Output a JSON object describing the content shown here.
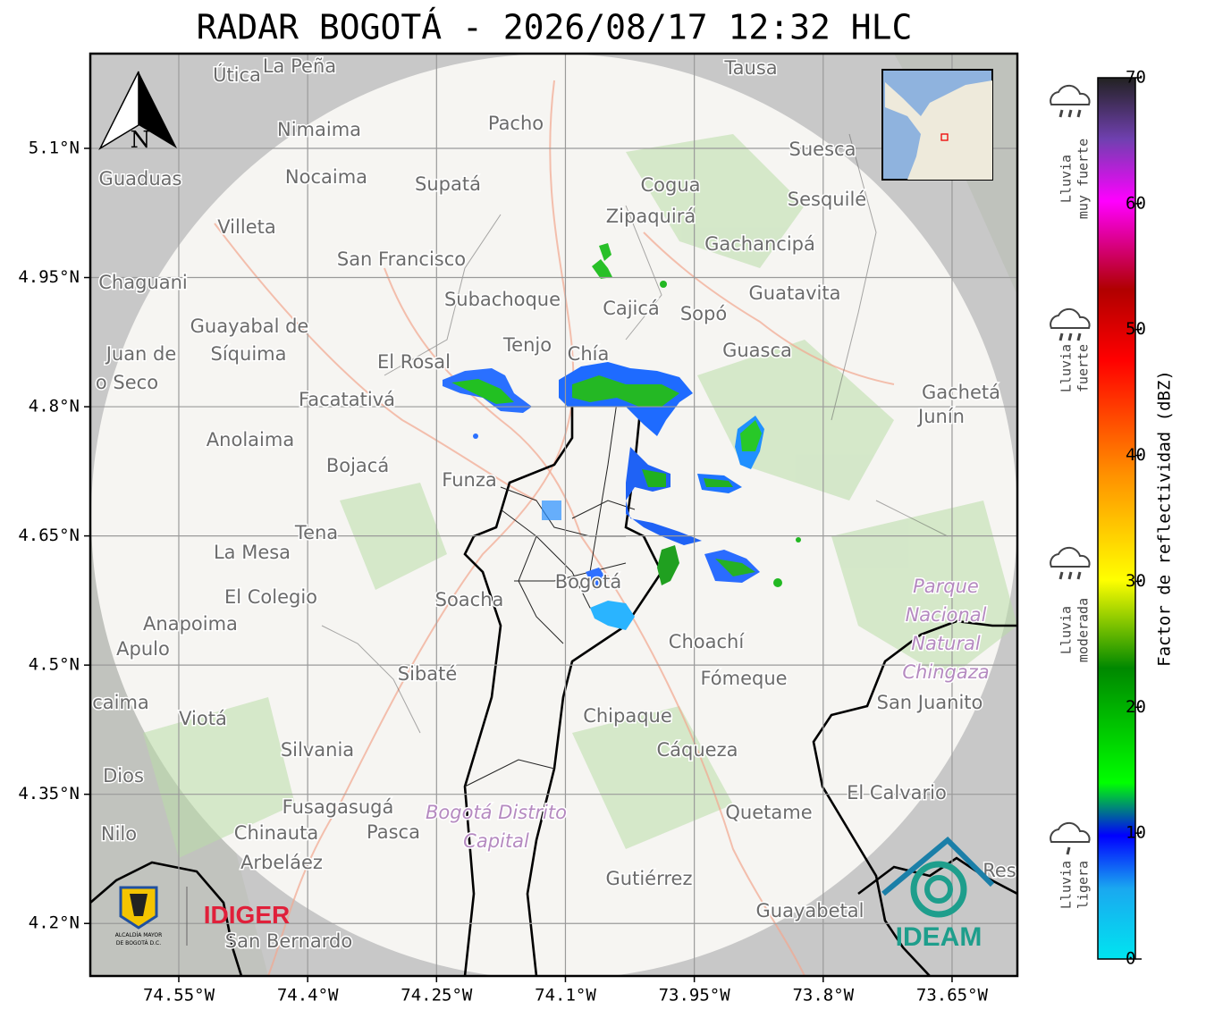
{
  "title": "RADAR BOGOTÁ - 2026/08/17 12:32 HLC",
  "map": {
    "xlim": [
      -74.653,
      -73.574
    ],
    "ylim": [
      4.139,
      5.21
    ],
    "xticks": [
      {
        "value": -74.55,
        "label": "74.55°W"
      },
      {
        "value": -74.4,
        "label": "74.4°W"
      },
      {
        "value": -74.25,
        "label": "74.25°W"
      },
      {
        "value": -74.1,
        "label": "74.1°W"
      },
      {
        "value": -73.95,
        "label": "73.95°W"
      },
      {
        "value": -73.8,
        "label": "73.8°W"
      },
      {
        "value": -73.65,
        "label": "73.65°W"
      }
    ],
    "yticks": [
      {
        "value": 5.1,
        "label": "5.1°N"
      },
      {
        "value": 4.95,
        "label": "4.95°N"
      },
      {
        "value": 4.8,
        "label": "4.8°N"
      },
      {
        "value": 4.65,
        "label": "4.65°N"
      },
      {
        "value": 4.5,
        "label": "4.5°N"
      },
      {
        "value": 4.35,
        "label": "4.35°N"
      },
      {
        "value": 4.2,
        "label": "4.2°N"
      }
    ],
    "north": "N",
    "places": [
      "Útica",
      "La Peña",
      "Tausa",
      "Nimaima",
      "Pacho",
      "Suesca",
      "Guaduas",
      "Nocaima",
      "Supatá",
      "Cogua",
      "Sesquilé",
      "Zipaquirá",
      "Villeta",
      "Gachancipá",
      "San Francisco",
      "Chaguani",
      "Guatavita",
      "Subachoque",
      "Cajicá",
      "Sopó",
      "Guayabal de",
      "Síquima",
      "Tenjo",
      "Chía",
      "Guasca",
      "Juan de",
      "El Rosal",
      "o Seco",
      "Gachetá",
      "Facatativá",
      "Junín",
      "Anolaima",
      "Bojacá",
      "Funza",
      "Tena",
      "La Mesa",
      "El Colegio",
      "Soacha",
      "Bogotá",
      "Parque",
      "Anapoima",
      "Nacional",
      "Apulo",
      "Choachí",
      "Natural",
      "Chingaza",
      "Sibaté",
      "Fómeque",
      "San Juanito",
      "caima",
      "Viotá",
      "Chipaque",
      "Silvania",
      "Cáqueza",
      "Dios",
      "El Calvario",
      "Fusagasugá",
      "Bogotá Distrito",
      "Quetame",
      "Nilo",
      "Chinauta",
      "Pasca",
      "Capital",
      "Arbeláez",
      "Gutiérrez",
      "Res",
      "Guayabetal",
      "San Bernardo"
    ]
  },
  "colorbar": {
    "label": "Factor de reflectividad (dBZ)",
    "lim": [
      0,
      70
    ],
    "ticks": [
      0,
      10,
      20,
      30,
      40,
      50,
      60,
      70
    ]
  },
  "rain_levels": [
    {
      "lines": [
        "Lluvia",
        "ligera"
      ]
    },
    {
      "lines": [
        "Lluvia",
        "moderada"
      ]
    },
    {
      "lines": [
        "Lluvia",
        "fuerte"
      ]
    },
    {
      "lines": [
        "Lluvia",
        "muy fuerte"
      ]
    }
  ],
  "logos": {
    "alcaldia": [
      "ALCALDÍA MAYOR",
      "DE BOGOTÁ D.C."
    ],
    "idiger": "IDIGER",
    "ideam": "IDEAM"
  }
}
